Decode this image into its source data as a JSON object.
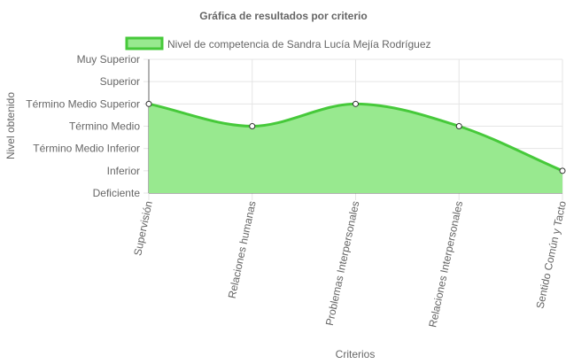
{
  "chart_data": {
    "type": "area",
    "title": "Gráfica de resultados por criterio",
    "xlabel": "Criterios",
    "ylabel": "Nivel obtenido",
    "categories": [
      "Supervisión",
      "Relaciones humanas",
      "Problemas Interpersonales",
      "Relaciones Interpersonales",
      "Sentido Común y Tacto"
    ],
    "y_levels": [
      "Deficiente",
      "Inferior",
      "Término Medio Inferior",
      "Término Medio",
      "Término Medio Superior",
      "Superior",
      "Muy Superior"
    ],
    "series": [
      {
        "name": "Nivel de competencia de Sandra Lucía Mejía Rodríguez",
        "values": [
          4,
          3,
          4,
          3,
          1
        ],
        "value_labels": [
          "Término Medio Superior",
          "Término Medio",
          "Término Medio Superior",
          "Término Medio",
          "Inferior"
        ]
      }
    ],
    "ylim": [
      0,
      6
    ],
    "grid": true,
    "legend_position": "top",
    "colors": {
      "fill": "#98e98f",
      "line": "#46c93a",
      "grid": "#e5e5e5",
      "axis": "#666666",
      "point_fill": "#ffffff",
      "point_stroke": "#333333"
    }
  }
}
